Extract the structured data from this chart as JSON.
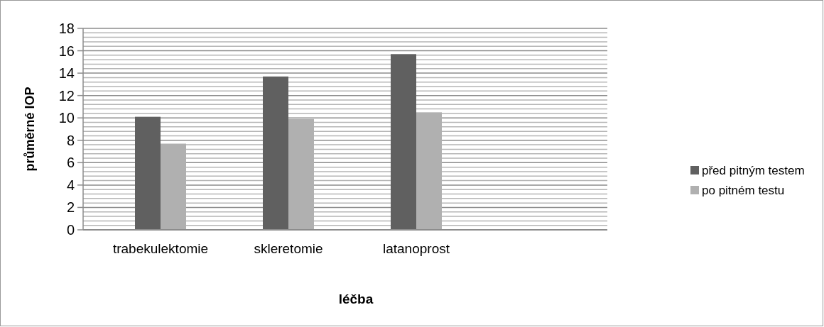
{
  "chart_data": {
    "type": "bar",
    "xlabel": "léčba",
    "ylabel": "průměrné IOP",
    "categories": [
      "trabekulektomie",
      "skleretomie",
      "latanoprost",
      null
    ],
    "series": [
      {
        "name": "před pitným testem",
        "color": "#606060",
        "values": [
          10.1,
          13.7,
          15.7,
          null
        ]
      },
      {
        "name": "po pitném testu",
        "color": "#b0b0b0",
        "values": [
          7.7,
          9.9,
          10.5,
          null
        ]
      }
    ],
    "ylim": [
      0,
      18
    ],
    "yticks": [
      0,
      2,
      4,
      6,
      8,
      10,
      12,
      14,
      16,
      18
    ],
    "grid": "y",
    "legend": "right"
  }
}
